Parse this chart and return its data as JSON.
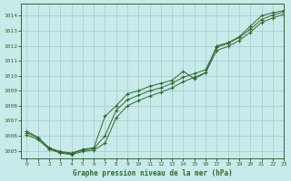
{
  "xlabel": "Graphe pression niveau de la mer (hPa)",
  "xlim": [
    -0.5,
    23
  ],
  "ylim": [
    1004.5,
    1014.8
  ],
  "yticks": [
    1005,
    1006,
    1007,
    1008,
    1009,
    1010,
    1011,
    1012,
    1013,
    1014
  ],
  "xticks": [
    0,
    1,
    2,
    3,
    4,
    5,
    6,
    7,
    8,
    9,
    10,
    11,
    12,
    13,
    14,
    15,
    16,
    17,
    18,
    19,
    20,
    21,
    22,
    23
  ],
  "bg_color": "#c8eaea",
  "grid_color": "#b0d0d0",
  "line_color": "#2d6b2d",
  "line1_y": [
    1006.3,
    1005.9,
    1005.2,
    1004.95,
    1004.85,
    1005.1,
    1005.2,
    1007.3,
    1008.0,
    1008.8,
    1009.0,
    1009.3,
    1009.5,
    1009.7,
    1010.3,
    1009.8,
    1010.2,
    1012.0,
    1012.2,
    1012.6,
    1013.3,
    1014.0,
    1014.2,
    1014.35
  ],
  "line2_y": [
    1006.2,
    1005.85,
    1005.15,
    1004.9,
    1004.8,
    1005.05,
    1005.15,
    1006.0,
    1007.7,
    1008.4,
    1008.7,
    1009.0,
    1009.2,
    1009.5,
    1009.9,
    1010.15,
    1010.4,
    1011.9,
    1012.15,
    1012.55,
    1013.1,
    1013.75,
    1014.05,
    1014.25
  ],
  "line3_y": [
    1006.05,
    1005.75,
    1005.1,
    1004.85,
    1004.75,
    1004.95,
    1005.05,
    1005.5,
    1007.2,
    1008.0,
    1008.35,
    1008.65,
    1008.9,
    1009.2,
    1009.6,
    1009.9,
    1010.2,
    1011.7,
    1011.95,
    1012.35,
    1012.9,
    1013.55,
    1013.85,
    1014.1
  ]
}
